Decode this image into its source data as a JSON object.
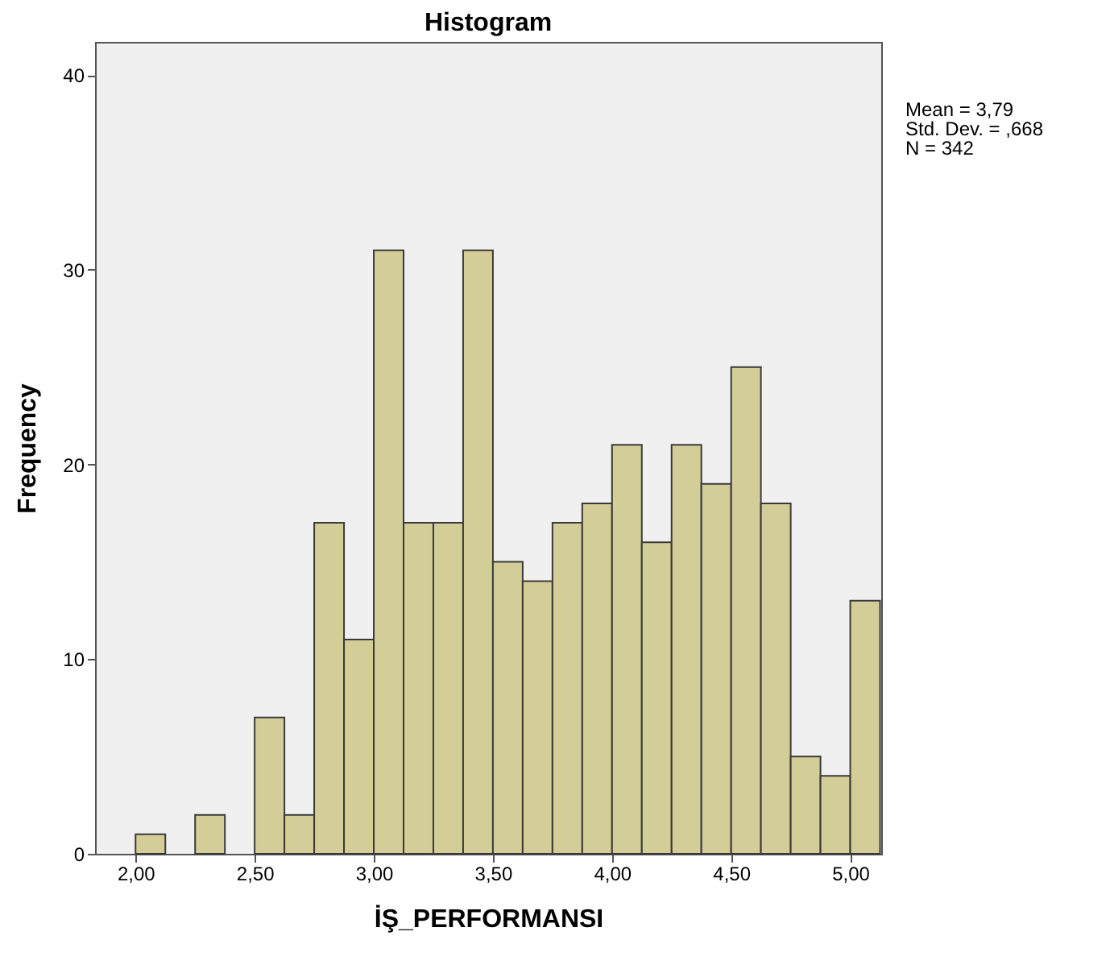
{
  "chart_data": {
    "type": "histogram",
    "title": "Histogram",
    "xlabel": "İŞ_PERFORMANSI",
    "ylabel": "Frequency",
    "bins": [
      2.0,
      2.125,
      2.25,
      2.375,
      2.5,
      2.625,
      2.75,
      2.875,
      3.0,
      3.125,
      3.25,
      3.375,
      3.5,
      3.625,
      3.75,
      3.875,
      4.0,
      4.125,
      4.25,
      4.375,
      4.5,
      4.625,
      4.75,
      4.875,
      5.0,
      5.125
    ],
    "values": [
      1,
      0,
      2,
      0,
      7,
      2,
      17,
      11,
      31,
      17,
      17,
      31,
      15,
      14,
      17,
      18,
      21,
      16,
      21,
      19,
      25,
      18,
      5,
      4,
      13
    ],
    "color": "#d3ce97",
    "xlim": [
      1.83,
      5.13
    ],
    "ylim": [
      0,
      41.7
    ],
    "xticks": [
      {
        "value": 2,
        "label": "2,00"
      },
      {
        "value": 2.5,
        "label": "2,50"
      },
      {
        "value": 3,
        "label": "3,00"
      },
      {
        "value": 3.5,
        "label": "3,50"
      },
      {
        "value": 4,
        "label": "4,00"
      },
      {
        "value": 4.5,
        "label": "4,50"
      },
      {
        "value": 5,
        "label": "5,00"
      }
    ],
    "yticks": [
      0,
      10,
      20,
      30,
      40
    ],
    "grid": false,
    "annotations": [
      "Mean = 3,79",
      "Std. Dev. = ,668",
      "N = 342"
    ]
  }
}
